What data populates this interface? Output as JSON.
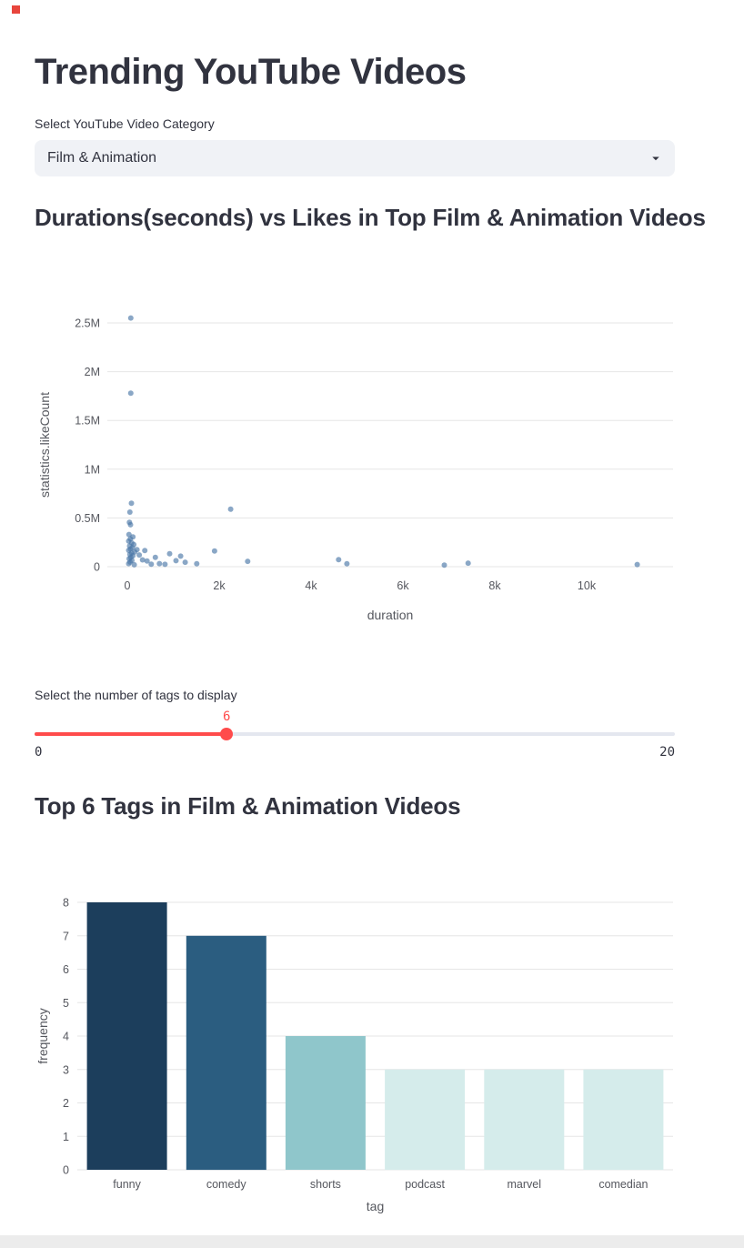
{
  "app": {
    "title": "Trending YouTube Videos"
  },
  "category_select": {
    "label": "Select YouTube Video Category",
    "value": "Film & Animation"
  },
  "scatter_section": {
    "heading": "Durations(seconds) vs Likes in Top Film & Animation Videos"
  },
  "tag_slider": {
    "label": "Select the number of tags to display",
    "value": 6,
    "min": 0,
    "max": 20
  },
  "bar_section": {
    "heading": "Top 6 Tags in Film & Animation Videos"
  },
  "colors": {
    "accent": "#ff4b4b",
    "text": "#31333f",
    "secondary_bg": "#f0f2f6"
  },
  "chart_data": [
    {
      "type": "scatter",
      "title": "Durations(seconds) vs Likes in Top Film & Animation Videos",
      "xlabel": "duration",
      "ylabel": "statistics.likeCount",
      "xlim": [
        0,
        11800
      ],
      "ylim": [
        0,
        2700000
      ],
      "grid": true,
      "point_color": "#4c78a8",
      "point_opacity": 0.65,
      "x_ticks": [
        {
          "v": 0,
          "label": "0"
        },
        {
          "v": 2000,
          "label": "2k"
        },
        {
          "v": 4000,
          "label": "4k"
        },
        {
          "v": 6000,
          "label": "6k"
        },
        {
          "v": 8000,
          "label": "8k"
        },
        {
          "v": 10000,
          "label": "10k"
        }
      ],
      "y_ticks": [
        {
          "v": 0,
          "label": "0"
        },
        {
          "v": 500000,
          "label": "0.5M"
        },
        {
          "v": 1000000,
          "label": "1M"
        },
        {
          "v": 1500000,
          "label": "1.5M"
        },
        {
          "v": 2000000,
          "label": "2M"
        },
        {
          "v": 2500000,
          "label": "2.5M"
        }
      ],
      "points": [
        [
          75,
          2550000
        ],
        [
          75,
          1780000
        ],
        [
          90,
          650000
        ],
        [
          55,
          560000
        ],
        [
          45,
          455000
        ],
        [
          70,
          430000
        ],
        [
          35,
          330000
        ],
        [
          120,
          305000
        ],
        [
          65,
          285000
        ],
        [
          30,
          262000
        ],
        [
          95,
          245000
        ],
        [
          140,
          228000
        ],
        [
          50,
          212000
        ],
        [
          110,
          196000
        ],
        [
          70,
          182000
        ],
        [
          30,
          168000
        ],
        [
          160,
          152000
        ],
        [
          95,
          140000
        ],
        [
          55,
          126000
        ],
        [
          120,
          112000
        ],
        [
          75,
          96000
        ],
        [
          40,
          82000
        ],
        [
          100,
          64000
        ],
        [
          60,
          48000
        ],
        [
          30,
          32000
        ],
        [
          150,
          20000
        ],
        [
          210,
          175000
        ],
        [
          260,
          120000
        ],
        [
          330,
          70000
        ],
        [
          380,
          165000
        ],
        [
          430,
          58000
        ],
        [
          520,
          26000
        ],
        [
          610,
          96000
        ],
        [
          700,
          32000
        ],
        [
          820,
          24000
        ],
        [
          920,
          132000
        ],
        [
          1060,
          62000
        ],
        [
          1160,
          108000
        ],
        [
          1260,
          46000
        ],
        [
          1510,
          30000
        ],
        [
          1900,
          160000
        ],
        [
          2250,
          590000
        ],
        [
          2620,
          55000
        ],
        [
          4600,
          72000
        ],
        [
          4780,
          30000
        ],
        [
          6900,
          16000
        ],
        [
          7420,
          36000
        ],
        [
          11100,
          22000
        ]
      ]
    },
    {
      "type": "bar",
      "title": "Top 6 Tags in Film & Animation Videos",
      "xlabel": "tag",
      "ylabel": "frequency",
      "ylim": [
        0,
        8
      ],
      "grid": true,
      "categories": [
        "funny",
        "comedy",
        "shorts",
        "podcast",
        "marvel",
        "comedian"
      ],
      "values": [
        8,
        7,
        4,
        3,
        3,
        3
      ],
      "bar_colors": [
        "#1c3e5c",
        "#2b5d80",
        "#8fc6cb",
        "#d5eceb",
        "#d5eceb",
        "#d5eceb"
      ],
      "y_ticks": [
        0,
        1,
        2,
        3,
        4,
        5,
        6,
        7,
        8
      ]
    }
  ]
}
